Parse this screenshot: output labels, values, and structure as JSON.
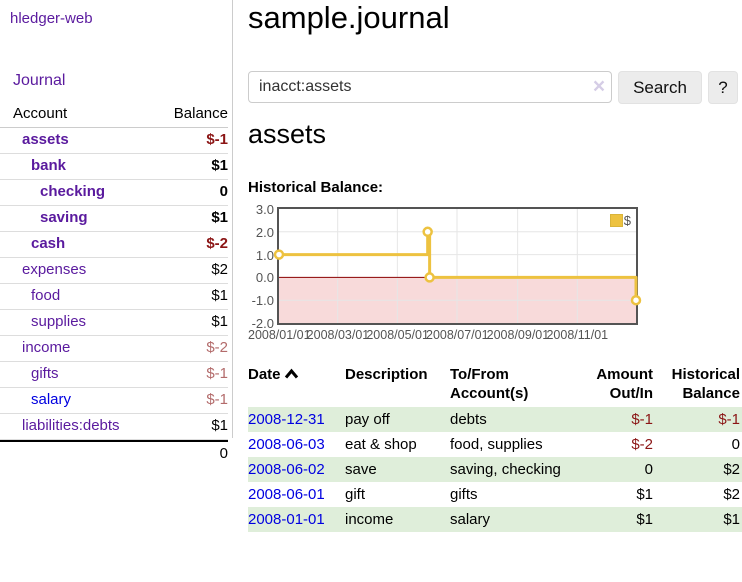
{
  "sidebar": {
    "brand": "hledger-web",
    "journal_link": "Journal",
    "accounts": {
      "col_account": "Account",
      "col_balance": "Balance",
      "rows": [
        {
          "name": "assets",
          "balance": "$-1"
        },
        {
          "name": "bank",
          "balance": "$1"
        },
        {
          "name": "checking",
          "balance": "0"
        },
        {
          "name": "saving",
          "balance": "$1"
        },
        {
          "name": "cash",
          "balance": "$-2"
        },
        {
          "name": "expenses",
          "balance": "$2"
        },
        {
          "name": "food",
          "balance": "$1"
        },
        {
          "name": "supplies",
          "balance": "$1"
        },
        {
          "name": "income",
          "balance": "$-2"
        },
        {
          "name": "gifts",
          "balance": "$-1"
        },
        {
          "name": "salary",
          "balance": "$-1"
        },
        {
          "name": "liabilities:debts",
          "balance": "$1"
        }
      ],
      "total": "0"
    }
  },
  "main": {
    "title": "sample.journal",
    "search": {
      "value": "inacct:assets",
      "clear_icon": "×",
      "search_button": "Search",
      "help_button": "?"
    },
    "heading": "assets",
    "chart_title": "Historical Balance:"
  },
  "chart_data": {
    "type": "line",
    "step": true,
    "title": "Historical Balance:",
    "legend": {
      "label": "$",
      "position": "top-right"
    },
    "series": [
      {
        "name": "$",
        "color": "#edc240",
        "points": [
          [
            "2008-01-01",
            1
          ],
          [
            "2008-06-01",
            2
          ],
          [
            "2008-06-03",
            0
          ],
          [
            "2008-12-31",
            -1
          ]
        ]
      }
    ],
    "xlim": [
      "2008-01-01",
      "2008-12-31"
    ],
    "ylim": [
      -2,
      3
    ],
    "x_ticks": [
      {
        "label": "2008/01/01",
        "date": "2008-01-01"
      },
      {
        "label": "2008/03/01",
        "date": "2008-03-01"
      },
      {
        "label": "2008/05/01",
        "date": "2008-05-01"
      },
      {
        "label": "2008/07/01",
        "date": "2008-07-01"
      },
      {
        "label": "2008/09/01",
        "date": "2008-09-01"
      },
      {
        "label": "2008/11/01",
        "date": "2008-11-01"
      }
    ],
    "y_ticks": [
      3,
      2,
      1,
      0,
      -1,
      -2
    ],
    "x_grid": [
      "2008-03-01",
      "2008-05-01",
      "2008-07-01",
      "2008-09-01",
      "2008-11-01"
    ],
    "y_grid": [
      2,
      1,
      -1
    ],
    "grid_color": "#e6e6e6",
    "zero_line_color": "#8b0000",
    "below_zero_fill": "#f8dada",
    "border_color": "#545454"
  },
  "transactions": {
    "headers": {
      "date": "Date",
      "description": "Description",
      "accounts": "To/From Account(s)",
      "amount": "Amount Out/In",
      "balance": "Historical Balance"
    },
    "rows": [
      {
        "date": "2008-12-31",
        "description": "pay off",
        "accounts": "debts",
        "amount": "$-1",
        "balance": "$-1"
      },
      {
        "date": "2008-06-03",
        "description": "eat & shop",
        "accounts": "food, supplies",
        "amount": "$-2",
        "balance": "0"
      },
      {
        "date": "2008-06-02",
        "description": "save",
        "accounts": "saving, checking",
        "amount": "0",
        "balance": "$2"
      },
      {
        "date": "2008-06-01",
        "description": "gift",
        "accounts": "gifts",
        "amount": "$1",
        "balance": "$2"
      },
      {
        "date": "2008-01-01",
        "description": "income",
        "accounts": "salary",
        "amount": "$1",
        "balance": "$1"
      }
    ]
  }
}
